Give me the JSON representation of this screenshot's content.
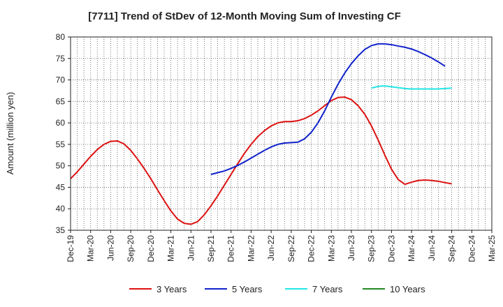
{
  "chart_data": {
    "type": "line",
    "title": "[7711]  Trend of StDev of 12-Month Moving Sum of Investing CF",
    "ylabel": "Amount (million yen)",
    "xlabel": "",
    "ylim": [
      35,
      80
    ],
    "yticks": [
      35,
      40,
      45,
      50,
      55,
      60,
      65,
      70,
      75,
      80
    ],
    "x_tick_labels": [
      "Dec-19",
      "Mar-20",
      "Jun-20",
      "Sep-20",
      "Dec-20",
      "Mar-21",
      "Jun-21",
      "Sep-21",
      "Dec-21",
      "Mar-22",
      "Jun-22",
      "Sep-22",
      "Dec-22",
      "Mar-23",
      "Jun-23",
      "Sep-23",
      "Dec-23",
      "Mar-24",
      "Jun-24",
      "Sep-24",
      "Dec-24",
      "Mar-25"
    ],
    "grid": true,
    "legend_position": "bottom",
    "series": [
      {
        "name": "3 Years",
        "color": "#dd1111",
        "points": [
          [
            "Dec-19",
            47.0
          ],
          [
            "Jan-20",
            48.6
          ],
          [
            "Feb-20",
            50.4
          ],
          [
            "Mar-20",
            52.2
          ],
          [
            "Apr-20",
            53.8
          ],
          [
            "May-20",
            55.0
          ],
          [
            "Jun-20",
            55.7
          ],
          [
            "Jul-20",
            55.8
          ],
          [
            "Aug-20",
            55.1
          ],
          [
            "Sep-20",
            53.6
          ],
          [
            "Oct-20",
            51.6
          ],
          [
            "Nov-20",
            49.4
          ],
          [
            "Dec-20",
            47.0
          ],
          [
            "Jan-21",
            44.4
          ],
          [
            "Feb-21",
            41.9
          ],
          [
            "Mar-21",
            39.5
          ],
          [
            "Apr-21",
            37.6
          ],
          [
            "May-21",
            36.6
          ],
          [
            "Jun-21",
            36.4
          ],
          [
            "Jul-21",
            37.0
          ],
          [
            "Aug-21",
            38.6
          ],
          [
            "Sep-21",
            40.7
          ],
          [
            "Oct-21",
            43.0
          ],
          [
            "Nov-21",
            45.5
          ],
          [
            "Dec-21",
            48.0
          ],
          [
            "Jan-22",
            50.5
          ],
          [
            "Feb-22",
            52.9
          ],
          [
            "Mar-22",
            55.0
          ],
          [
            "Apr-22",
            56.8
          ],
          [
            "May-22",
            58.2
          ],
          [
            "Jun-22",
            59.3
          ],
          [
            "Jul-22",
            60.0
          ],
          [
            "Aug-22",
            60.3
          ],
          [
            "Sep-22",
            60.3
          ],
          [
            "Oct-22",
            60.5
          ],
          [
            "Nov-22",
            61.0
          ],
          [
            "Dec-22",
            61.8
          ],
          [
            "Jan-23",
            62.8
          ],
          [
            "Feb-23",
            64.0
          ],
          [
            "Mar-23",
            65.2
          ],
          [
            "Apr-23",
            65.9
          ],
          [
            "May-23",
            66.0
          ],
          [
            "Jun-23",
            65.4
          ],
          [
            "Jul-23",
            64.0
          ],
          [
            "Aug-23",
            62.0
          ],
          [
            "Sep-23",
            59.3
          ],
          [
            "Oct-23",
            56.0
          ],
          [
            "Nov-23",
            52.5
          ],
          [
            "Dec-23",
            49.2
          ],
          [
            "Jan-24",
            46.8
          ],
          [
            "Feb-24",
            45.7
          ],
          [
            "Mar-24",
            46.2
          ],
          [
            "Apr-24",
            46.6
          ],
          [
            "May-24",
            46.7
          ],
          [
            "Jun-24",
            46.6
          ],
          [
            "Jul-24",
            46.4
          ],
          [
            "Aug-24",
            46.1
          ],
          [
            "Sep-24",
            45.8
          ]
        ]
      },
      {
        "name": "5 Years",
        "color": "#1122cc",
        "points": [
          [
            "Sep-21",
            48.0
          ],
          [
            "Oct-21",
            48.4
          ],
          [
            "Nov-21",
            48.8
          ],
          [
            "Dec-21",
            49.4
          ],
          [
            "Jan-22",
            50.1
          ],
          [
            "Feb-22",
            50.9
          ],
          [
            "Mar-22",
            51.8
          ],
          [
            "Apr-22",
            52.7
          ],
          [
            "May-22",
            53.6
          ],
          [
            "Jun-22",
            54.4
          ],
          [
            "Jul-22",
            55.0
          ],
          [
            "Aug-22",
            55.3
          ],
          [
            "Sep-22",
            55.4
          ],
          [
            "Oct-22",
            55.5
          ],
          [
            "Nov-22",
            56.3
          ],
          [
            "Dec-22",
            57.8
          ],
          [
            "Jan-23",
            60.0
          ],
          [
            "Feb-23",
            62.8
          ],
          [
            "Mar-23",
            66.0
          ],
          [
            "Apr-23",
            69.0
          ],
          [
            "May-23",
            71.6
          ],
          [
            "Jun-23",
            73.8
          ],
          [
            "Jul-23",
            75.6
          ],
          [
            "Aug-23",
            77.1
          ],
          [
            "Sep-23",
            78.0
          ],
          [
            "Oct-23",
            78.4
          ],
          [
            "Nov-23",
            78.4
          ],
          [
            "Dec-23",
            78.2
          ],
          [
            "Jan-24",
            77.9
          ],
          [
            "Feb-24",
            77.6
          ],
          [
            "Mar-24",
            77.2
          ],
          [
            "Apr-24",
            76.6
          ],
          [
            "May-24",
            75.9
          ],
          [
            "Jun-24",
            75.1
          ],
          [
            "Jul-24",
            74.2
          ],
          [
            "Aug-24",
            73.2
          ]
        ]
      },
      {
        "name": "7 Years",
        "color": "#22e5e5",
        "points": [
          [
            "Sep-23",
            68.1
          ],
          [
            "Oct-23",
            68.5
          ],
          [
            "Nov-23",
            68.6
          ],
          [
            "Dec-23",
            68.4
          ],
          [
            "Jan-24",
            68.2
          ],
          [
            "Feb-24",
            68.0
          ],
          [
            "Mar-24",
            67.9
          ],
          [
            "Apr-24",
            67.9
          ],
          [
            "May-24",
            67.9
          ],
          [
            "Jun-24",
            67.9
          ],
          [
            "Jul-24",
            67.9
          ],
          [
            "Aug-24",
            68.0
          ],
          [
            "Sep-24",
            68.1
          ]
        ]
      },
      {
        "name": "10 Years",
        "color": "#228822",
        "points": []
      }
    ]
  }
}
